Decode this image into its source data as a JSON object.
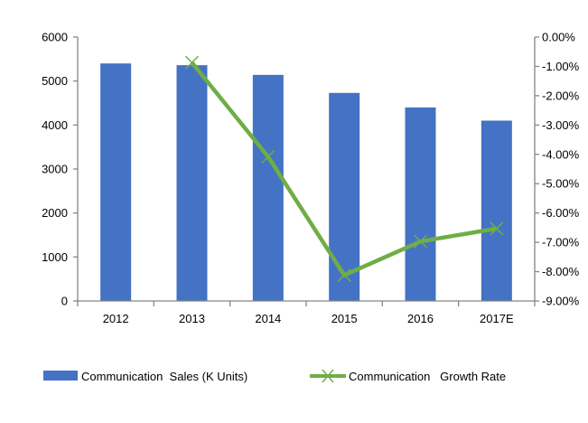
{
  "chart_data": {
    "type": "bar+line",
    "categories": [
      "2012",
      "2013",
      "2014",
      "2015",
      "2016",
      "2017E"
    ],
    "series": [
      {
        "name": "Communication  Sales (K Units)",
        "type": "bar",
        "axis": "left",
        "color": "#4472C4",
        "values": [
          5400,
          5360,
          5140,
          4730,
          4400,
          4100
        ]
      },
      {
        "name": "Communication   Growth Rate",
        "type": "line",
        "axis": "right",
        "color": "#70AD47",
        "marker": "x",
        "values": [
          null,
          -0.87,
          -4.08,
          -8.12,
          -6.97,
          -6.53
        ]
      }
    ],
    "left_axis": {
      "ylim": [
        0,
        6000
      ],
      "ticks": [
        "0",
        "1000",
        "2000",
        "3000",
        "4000",
        "5000",
        "6000"
      ]
    },
    "right_axis": {
      "ylim": [
        -9,
        0
      ],
      "unit": "%",
      "ticks": [
        "0.00%",
        "-1.00%",
        "-2.00%",
        "-3.00%",
        "-4.00%",
        "-5.00%",
        "-6.00%",
        "-7.00%",
        "-8.00%",
        "-9.00%"
      ]
    },
    "grid": false,
    "legend": "bottom"
  }
}
